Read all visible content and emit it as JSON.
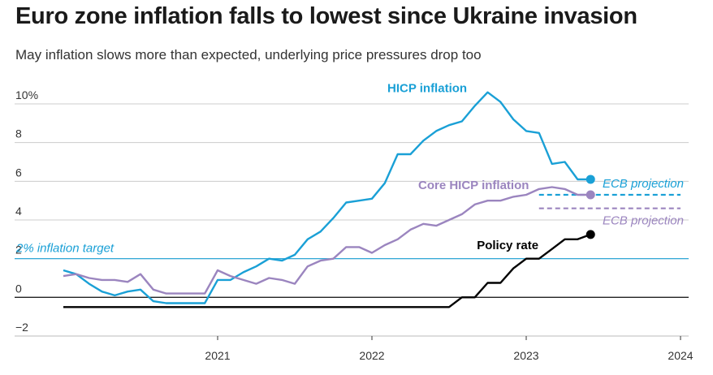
{
  "chart_data": {
    "type": "line",
    "title": "Euro zone inflation falls to lowest since Ukraine invasion",
    "subtitle": "May inflation slows more than expected, underlying price pressures drop too",
    "y_ticks": [
      "10%",
      "8",
      "6",
      "4",
      "2",
      "0",
      "−2"
    ],
    "y_tick_values": [
      10,
      8,
      6,
      4,
      2,
      0,
      -2
    ],
    "ylim": [
      -2,
      10.5
    ],
    "x_ticks": [
      "2021",
      "2022",
      "2023",
      "2024"
    ],
    "x_tick_values": [
      2021.0,
      2022.0,
      2023.0,
      2024.0
    ],
    "xlim": [
      2020.0,
      2024.0
    ],
    "target": {
      "label": "2% inflation target",
      "value": 2,
      "color": "#1aa0d6"
    },
    "series": [
      {
        "name": "HICP inflation",
        "color": "#1aa0d6",
        "x": [
          2020.0,
          2020.083,
          2020.167,
          2020.25,
          2020.333,
          2020.417,
          2020.5,
          2020.583,
          2020.667,
          2020.75,
          2020.833,
          2020.917,
          2021.0,
          2021.083,
          2021.167,
          2021.25,
          2021.333,
          2021.417,
          2021.5,
          2021.583,
          2021.667,
          2021.75,
          2021.833,
          2021.917,
          2022.0,
          2022.083,
          2022.167,
          2022.25,
          2022.333,
          2022.417,
          2022.5,
          2022.583,
          2022.667,
          2022.75,
          2022.833,
          2022.917,
          2023.0,
          2023.083,
          2023.167,
          2023.25,
          2023.333,
          2023.417
        ],
        "values": [
          1.4,
          1.2,
          0.7,
          0.3,
          0.1,
          0.3,
          0.4,
          -0.2,
          -0.3,
          -0.3,
          -0.3,
          -0.3,
          0.9,
          0.9,
          1.3,
          1.6,
          2.0,
          1.9,
          2.2,
          3.0,
          3.4,
          4.1,
          4.9,
          5.0,
          5.1,
          5.9,
          7.4,
          7.4,
          8.1,
          8.6,
          8.9,
          9.1,
          9.9,
          10.6,
          10.1,
          9.2,
          8.6,
          8.5,
          6.9,
          7.0,
          6.1,
          6.1
        ],
        "endpoint": true
      },
      {
        "name": "Core HICP inflation",
        "color": "#9b85bf",
        "x": [
          2020.0,
          2020.083,
          2020.167,
          2020.25,
          2020.333,
          2020.417,
          2020.5,
          2020.583,
          2020.667,
          2020.75,
          2020.833,
          2020.917,
          2021.0,
          2021.083,
          2021.167,
          2021.25,
          2021.333,
          2021.417,
          2021.5,
          2021.583,
          2021.667,
          2021.75,
          2021.833,
          2021.917,
          2022.0,
          2022.083,
          2022.167,
          2022.25,
          2022.333,
          2022.417,
          2022.5,
          2022.583,
          2022.667,
          2022.75,
          2022.833,
          2022.917,
          2023.0,
          2023.083,
          2023.167,
          2023.25,
          2023.333,
          2023.417
        ],
        "values": [
          1.1,
          1.2,
          1.0,
          0.9,
          0.9,
          0.8,
          1.2,
          0.4,
          0.2,
          0.2,
          0.2,
          0.2,
          1.4,
          1.1,
          0.9,
          0.7,
          1.0,
          0.9,
          0.7,
          1.6,
          1.9,
          2.0,
          2.6,
          2.6,
          2.3,
          2.7,
          3.0,
          3.5,
          3.8,
          3.7,
          4.0,
          4.3,
          4.8,
          5.0,
          5.0,
          5.2,
          5.3,
          5.6,
          5.7,
          5.6,
          5.3,
          5.3
        ],
        "endpoint": true
      },
      {
        "name": "Policy rate",
        "color": "#000000",
        "x": [
          2020.0,
          2022.5,
          2022.583,
          2022.583,
          2022.667,
          2022.667,
          2022.75,
          2022.75,
          2022.833,
          2022.833,
          2022.917,
          2022.917,
          2023.0,
          2023.0,
          2023.083,
          2023.083,
          2023.167,
          2023.167,
          2023.25,
          2023.25,
          2023.333,
          2023.417
        ],
        "values": [
          -0.5,
          -0.5,
          0.0,
          0.0,
          0.0,
          0.0,
          0.75,
          0.75,
          0.75,
          0.75,
          1.5,
          1.5,
          2.0,
          2.0,
          2.0,
          2.0,
          2.5,
          2.5,
          3.0,
          3.0,
          3.0,
          3.25
        ],
        "endpoint": true
      }
    ],
    "projections": [
      {
        "label": "ECB projection",
        "value": 5.3,
        "x_from": 2023.083,
        "x_to": 2024.0,
        "color": "#1aa0d6"
      },
      {
        "label": "ECB projection",
        "value": 4.6,
        "x_from": 2023.083,
        "x_to": 2024.0,
        "color": "#9b85bf"
      }
    ]
  }
}
